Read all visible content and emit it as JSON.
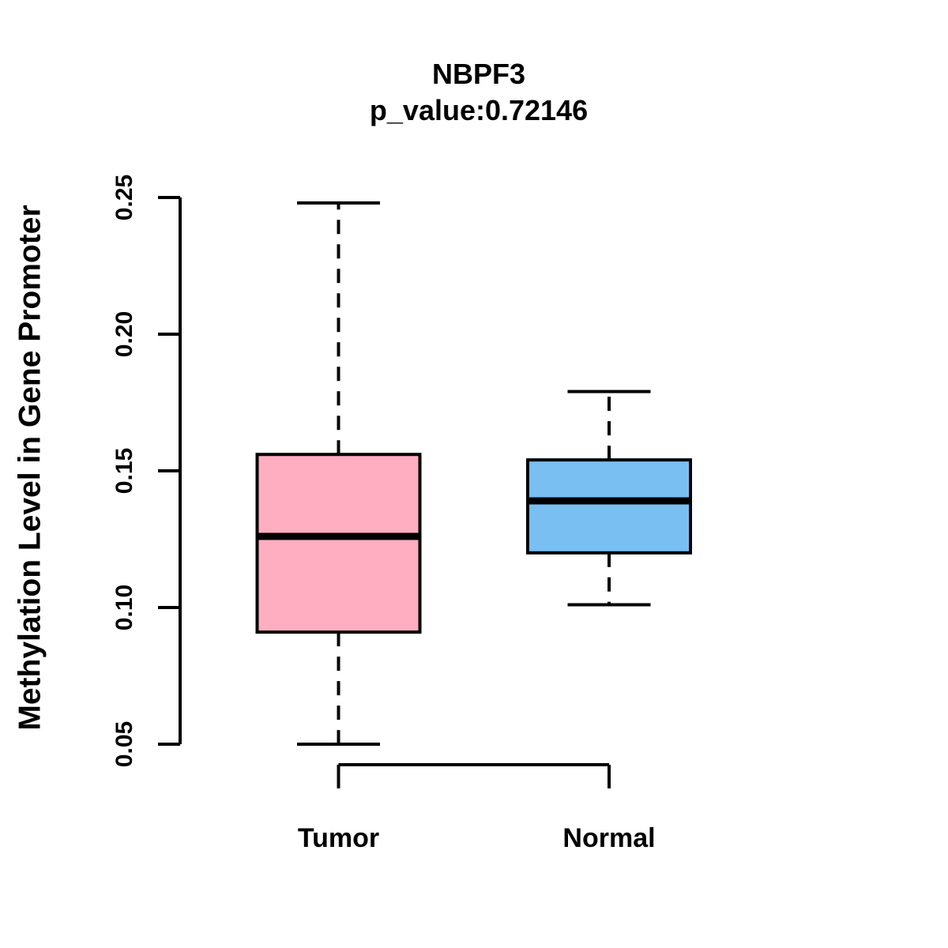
{
  "chart_data": {
    "type": "boxplot",
    "title": "NBPF3",
    "subtitle": "p_value:0.72146",
    "gene": "NBPF3",
    "p_value": 0.72146,
    "ylabel": "Methylation Level in Gene Promoter",
    "xlabel": "",
    "categories": [
      "Tumor",
      "Normal"
    ],
    "yticks": [
      0.05,
      0.1,
      0.15,
      0.2,
      0.25
    ],
    "ytick_labels": [
      "0.05",
      "0.10",
      "0.15",
      "0.20",
      "0.25"
    ],
    "ylim": [
      0.05,
      0.25
    ],
    "grid": false,
    "legend": "none",
    "series": [
      {
        "name": "Tumor",
        "color": "#FFAEC1",
        "lower_whisker": 0.05,
        "q1": 0.091,
        "median": 0.126,
        "q3": 0.156,
        "upper_whisker": 0.248,
        "outliers": []
      },
      {
        "name": "Normal",
        "color": "#79BFF2",
        "lower_whisker": 0.101,
        "q1": 0.12,
        "median": 0.139,
        "q3": 0.154,
        "upper_whisker": 0.179,
        "outliers": []
      }
    ],
    "stroke_color": "#000000",
    "background_color": "#FFFFFF"
  }
}
